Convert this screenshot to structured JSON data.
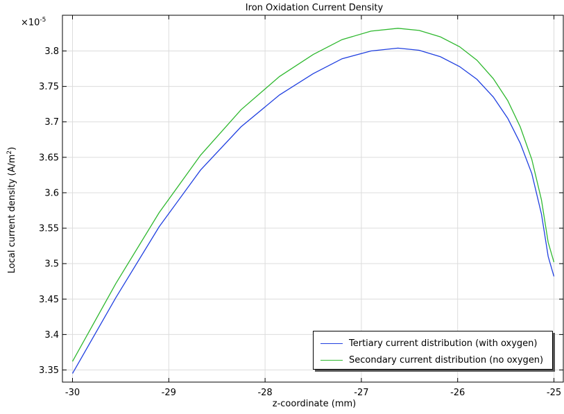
{
  "chart_data": {
    "type": "line",
    "title": "Iron Oxidation Current Density",
    "xlabel": "z-coordinate (mm)",
    "ylabel": "Local current density (A/m",
    "ylabel_sup": "2",
    "ylabel_end": ")",
    "y_multiplier_base": "×10",
    "y_multiplier_exp": "-5",
    "xlim": [
      -30,
      -25
    ],
    "ylim": [
      3.33,
      3.83
    ],
    "xticks": [
      -30,
      -29,
      -28,
      -27,
      -26,
      -25
    ],
    "xtick_labels": [
      "-30",
      "-29",
      "-28",
      "-27",
      "-26",
      "-25"
    ],
    "yticks": [
      3.35,
      3.4,
      3.45,
      3.5,
      3.55,
      3.6,
      3.65,
      3.7,
      3.75,
      3.8
    ],
    "ytick_labels": [
      "3.35",
      "3.4",
      "3.45",
      "3.5",
      "3.55",
      "3.6",
      "3.65",
      "3.7",
      "3.75",
      "3.8"
    ],
    "grid": true,
    "legend_position": "bottom-right",
    "series": [
      {
        "name": "Tertiary current distribution (with oxygen)",
        "color": "#1f3fe0",
        "x": [
          -30,
          -29.55,
          -29.1,
          -28.67,
          -28.25,
          -27.85,
          -27.5,
          -27.2,
          -26.9,
          -26.62,
          -26.4,
          -26.18,
          -25.98,
          -25.8,
          -25.63,
          -25.48,
          -25.35,
          -25.23,
          -25.13,
          -25.06,
          -25.0
        ],
        "y": [
          3.345,
          3.452,
          3.552,
          3.632,
          3.693,
          3.738,
          3.768,
          3.789,
          3.8,
          3.804,
          3.801,
          3.792,
          3.778,
          3.76,
          3.735,
          3.705,
          3.67,
          3.627,
          3.57,
          3.51,
          3.482
        ]
      },
      {
        "name": "Secondary current distribution (no oxygen)",
        "color": "#2eb82e",
        "x": [
          -30,
          -29.55,
          -29.1,
          -28.67,
          -28.25,
          -27.85,
          -27.5,
          -27.2,
          -26.9,
          -26.62,
          -26.4,
          -26.18,
          -25.98,
          -25.8,
          -25.63,
          -25.48,
          -25.35,
          -25.23,
          -25.13,
          -25.06,
          -25.0
        ],
        "y": [
          3.362,
          3.472,
          3.572,
          3.653,
          3.717,
          3.764,
          3.795,
          3.816,
          3.828,
          3.832,
          3.829,
          3.82,
          3.806,
          3.787,
          3.761,
          3.73,
          3.693,
          3.647,
          3.59,
          3.53,
          3.502
        ]
      }
    ]
  }
}
